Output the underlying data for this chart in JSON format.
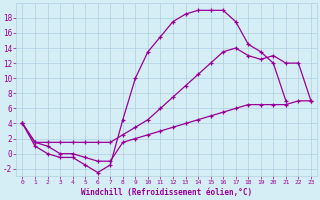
{
  "xlabel": "Windchill (Refroidissement éolien,°C)",
  "x_hours": [
    0,
    1,
    2,
    3,
    4,
    5,
    6,
    7,
    8,
    9,
    10,
    11,
    12,
    13,
    14,
    15,
    16,
    17,
    18,
    19,
    20,
    21,
    22,
    23
  ],
  "line_top_x": [
    0,
    1,
    2,
    3,
    4,
    5,
    6,
    7,
    8,
    9,
    10,
    11,
    12,
    13,
    14,
    15,
    16,
    17,
    18,
    19,
    20,
    21
  ],
  "line_top_y": [
    4,
    1,
    0,
    -0.5,
    -0.5,
    -1.5,
    -2.5,
    -1.5,
    4.5,
    10,
    13.5,
    15.5,
    17.5,
    18.5,
    19,
    19,
    19,
    17.5,
    14.5,
    13.5,
    12,
    7
  ],
  "line_mid_x": [
    0,
    1,
    2,
    3,
    4,
    5,
    6,
    7,
    8,
    9,
    10,
    11,
    12,
    13,
    14,
    15,
    16,
    17,
    18,
    19,
    20,
    21,
    22,
    23
  ],
  "line_mid_y": [
    4,
    1.5,
    1.5,
    1.5,
    1.5,
    1.5,
    1.5,
    1.5,
    2.5,
    3.5,
    4.5,
    6.0,
    7.5,
    9.0,
    10.5,
    12.0,
    13.5,
    14.0,
    13.0,
    12.5,
    13.0,
    12.0,
    12.0,
    7.0
  ],
  "line_bot_x": [
    0,
    1,
    2,
    3,
    4,
    5,
    6,
    7,
    8,
    9,
    10,
    11,
    12,
    13,
    14,
    15,
    16,
    17,
    18,
    19,
    20,
    21,
    22,
    23
  ],
  "line_bot_y": [
    4,
    1.5,
    1.0,
    0.0,
    0.0,
    -0.5,
    -1.0,
    -1.0,
    1.5,
    2.0,
    2.5,
    3.0,
    3.5,
    4.0,
    4.5,
    5.0,
    5.5,
    6.0,
    6.5,
    6.5,
    6.5,
    6.5,
    7.0,
    7.0
  ],
  "ylim": [
    -3,
    20
  ],
  "yticks": [
    -2,
    0,
    2,
    4,
    6,
    8,
    10,
    12,
    14,
    16,
    18
  ],
  "xlim": [
    -0.5,
    23.5
  ],
  "line_color": "#990099",
  "bg_color": "#d5eef5",
  "grid_color": "#b0cfe0",
  "tick_color": "#990099",
  "label_color": "#990099"
}
